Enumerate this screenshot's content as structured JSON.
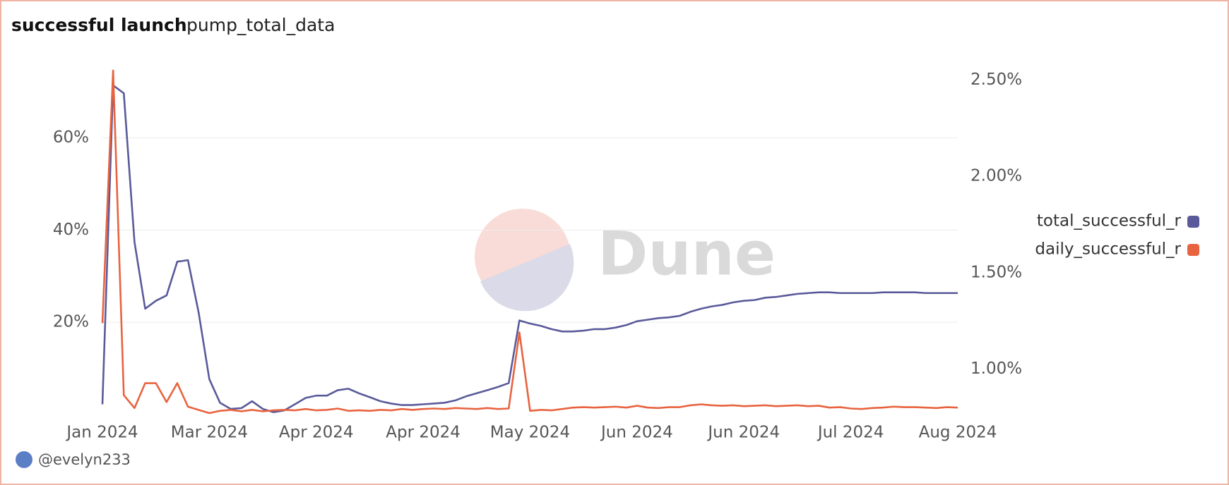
{
  "chart_data": {
    "type": "line",
    "title": "successful launch",
    "subtitle": "pump_total_data",
    "watermark": "Dune",
    "author": "@evelyn233",
    "categories": [
      "Jan 2024",
      null,
      null,
      null,
      null,
      null,
      null,
      null,
      null,
      null,
      "Mar 2024",
      null,
      null,
      null,
      null,
      null,
      null,
      null,
      null,
      null,
      "Apr 2024",
      null,
      null,
      null,
      null,
      null,
      null,
      null,
      null,
      null,
      "Apr 2024",
      null,
      null,
      null,
      null,
      null,
      null,
      null,
      null,
      null,
      "May 2024",
      null,
      null,
      null,
      null,
      null,
      null,
      null,
      null,
      null,
      "Jun 2024",
      null,
      null,
      null,
      null,
      null,
      null,
      null,
      null,
      null,
      "Jun 2024",
      null,
      null,
      null,
      null,
      null,
      null,
      null,
      null,
      null,
      "Jul 2024",
      null,
      null,
      null,
      null,
      null,
      null,
      null,
      null,
      null,
      "Aug 2024"
    ],
    "series": [
      {
        "name": "total_successful_r",
        "color": "#5a5a9a",
        "axis": "y2",
        "values": [
          0.817,
          2.472,
          2.431,
          1.659,
          1.313,
          1.354,
          1.382,
          1.557,
          1.565,
          1.293,
          0.947,
          0.825,
          0.793,
          0.797,
          0.833,
          0.793,
          0.776,
          0.785,
          0.817,
          0.85,
          0.862,
          0.862,
          0.89,
          0.898,
          0.874,
          0.854,
          0.833,
          0.821,
          0.813,
          0.813,
          0.817,
          0.821,
          0.825,
          0.837,
          0.858,
          0.874,
          0.89,
          0.907,
          0.927,
          1.252,
          1.236,
          1.224,
          1.207,
          1.195,
          1.195,
          1.199,
          1.207,
          1.207,
          1.215,
          1.228,
          1.248,
          1.256,
          1.264,
          1.268,
          1.276,
          1.297,
          1.313,
          1.325,
          1.333,
          1.346,
          1.354,
          1.358,
          1.37,
          1.374,
          1.382,
          1.39,
          1.394,
          1.398,
          1.398,
          1.394,
          1.394,
          1.394,
          1.394,
          1.398,
          1.398,
          1.398,
          1.398,
          1.394,
          1.394,
          1.394,
          1.394
        ]
      },
      {
        "name": "daily_successful_r",
        "color": "#e8633f",
        "axis": "y",
        "values": [
          19.8,
          74.6,
          4.2,
          1.4,
          6.8,
          6.8,
          2.7,
          6.8,
          1.7,
          1.0,
          0.3,
          0.8,
          1.0,
          0.7,
          1.0,
          0.7,
          0.9,
          1.0,
          0.9,
          1.2,
          0.9,
          1.0,
          1.3,
          0.8,
          0.9,
          0.8,
          1.0,
          0.9,
          1.2,
          1.0,
          1.2,
          1.3,
          1.2,
          1.4,
          1.3,
          1.2,
          1.4,
          1.2,
          1.3,
          17.8,
          0.8,
          1.0,
          0.9,
          1.2,
          1.5,
          1.6,
          1.5,
          1.6,
          1.7,
          1.5,
          1.9,
          1.5,
          1.4,
          1.6,
          1.6,
          2.0,
          2.2,
          2.0,
          1.9,
          2.0,
          1.8,
          1.9,
          2.0,
          1.8,
          1.9,
          2.0,
          1.8,
          1.9,
          1.5,
          1.6,
          1.3,
          1.2,
          1.4,
          1.5,
          1.7,
          1.6,
          1.6,
          1.5,
          1.4,
          1.6,
          1.5
        ]
      }
    ],
    "ylim": [
      0,
      74.6
    ],
    "yticks": [
      {
        "value": 20,
        "label": "20%"
      },
      {
        "value": 40,
        "label": "40%"
      },
      {
        "value": 60,
        "label": "60%"
      }
    ],
    "y2lim": [
      0.764,
      2.549
    ],
    "y2ticks": [
      {
        "value": 1.0,
        "label": "1.00%"
      },
      {
        "value": 1.5,
        "label": "1.50%"
      },
      {
        "value": 2.0,
        "label": "2.00%"
      },
      {
        "value": 2.5,
        "label": "2.50%"
      }
    ],
    "grid": true,
    "legend": "right"
  }
}
